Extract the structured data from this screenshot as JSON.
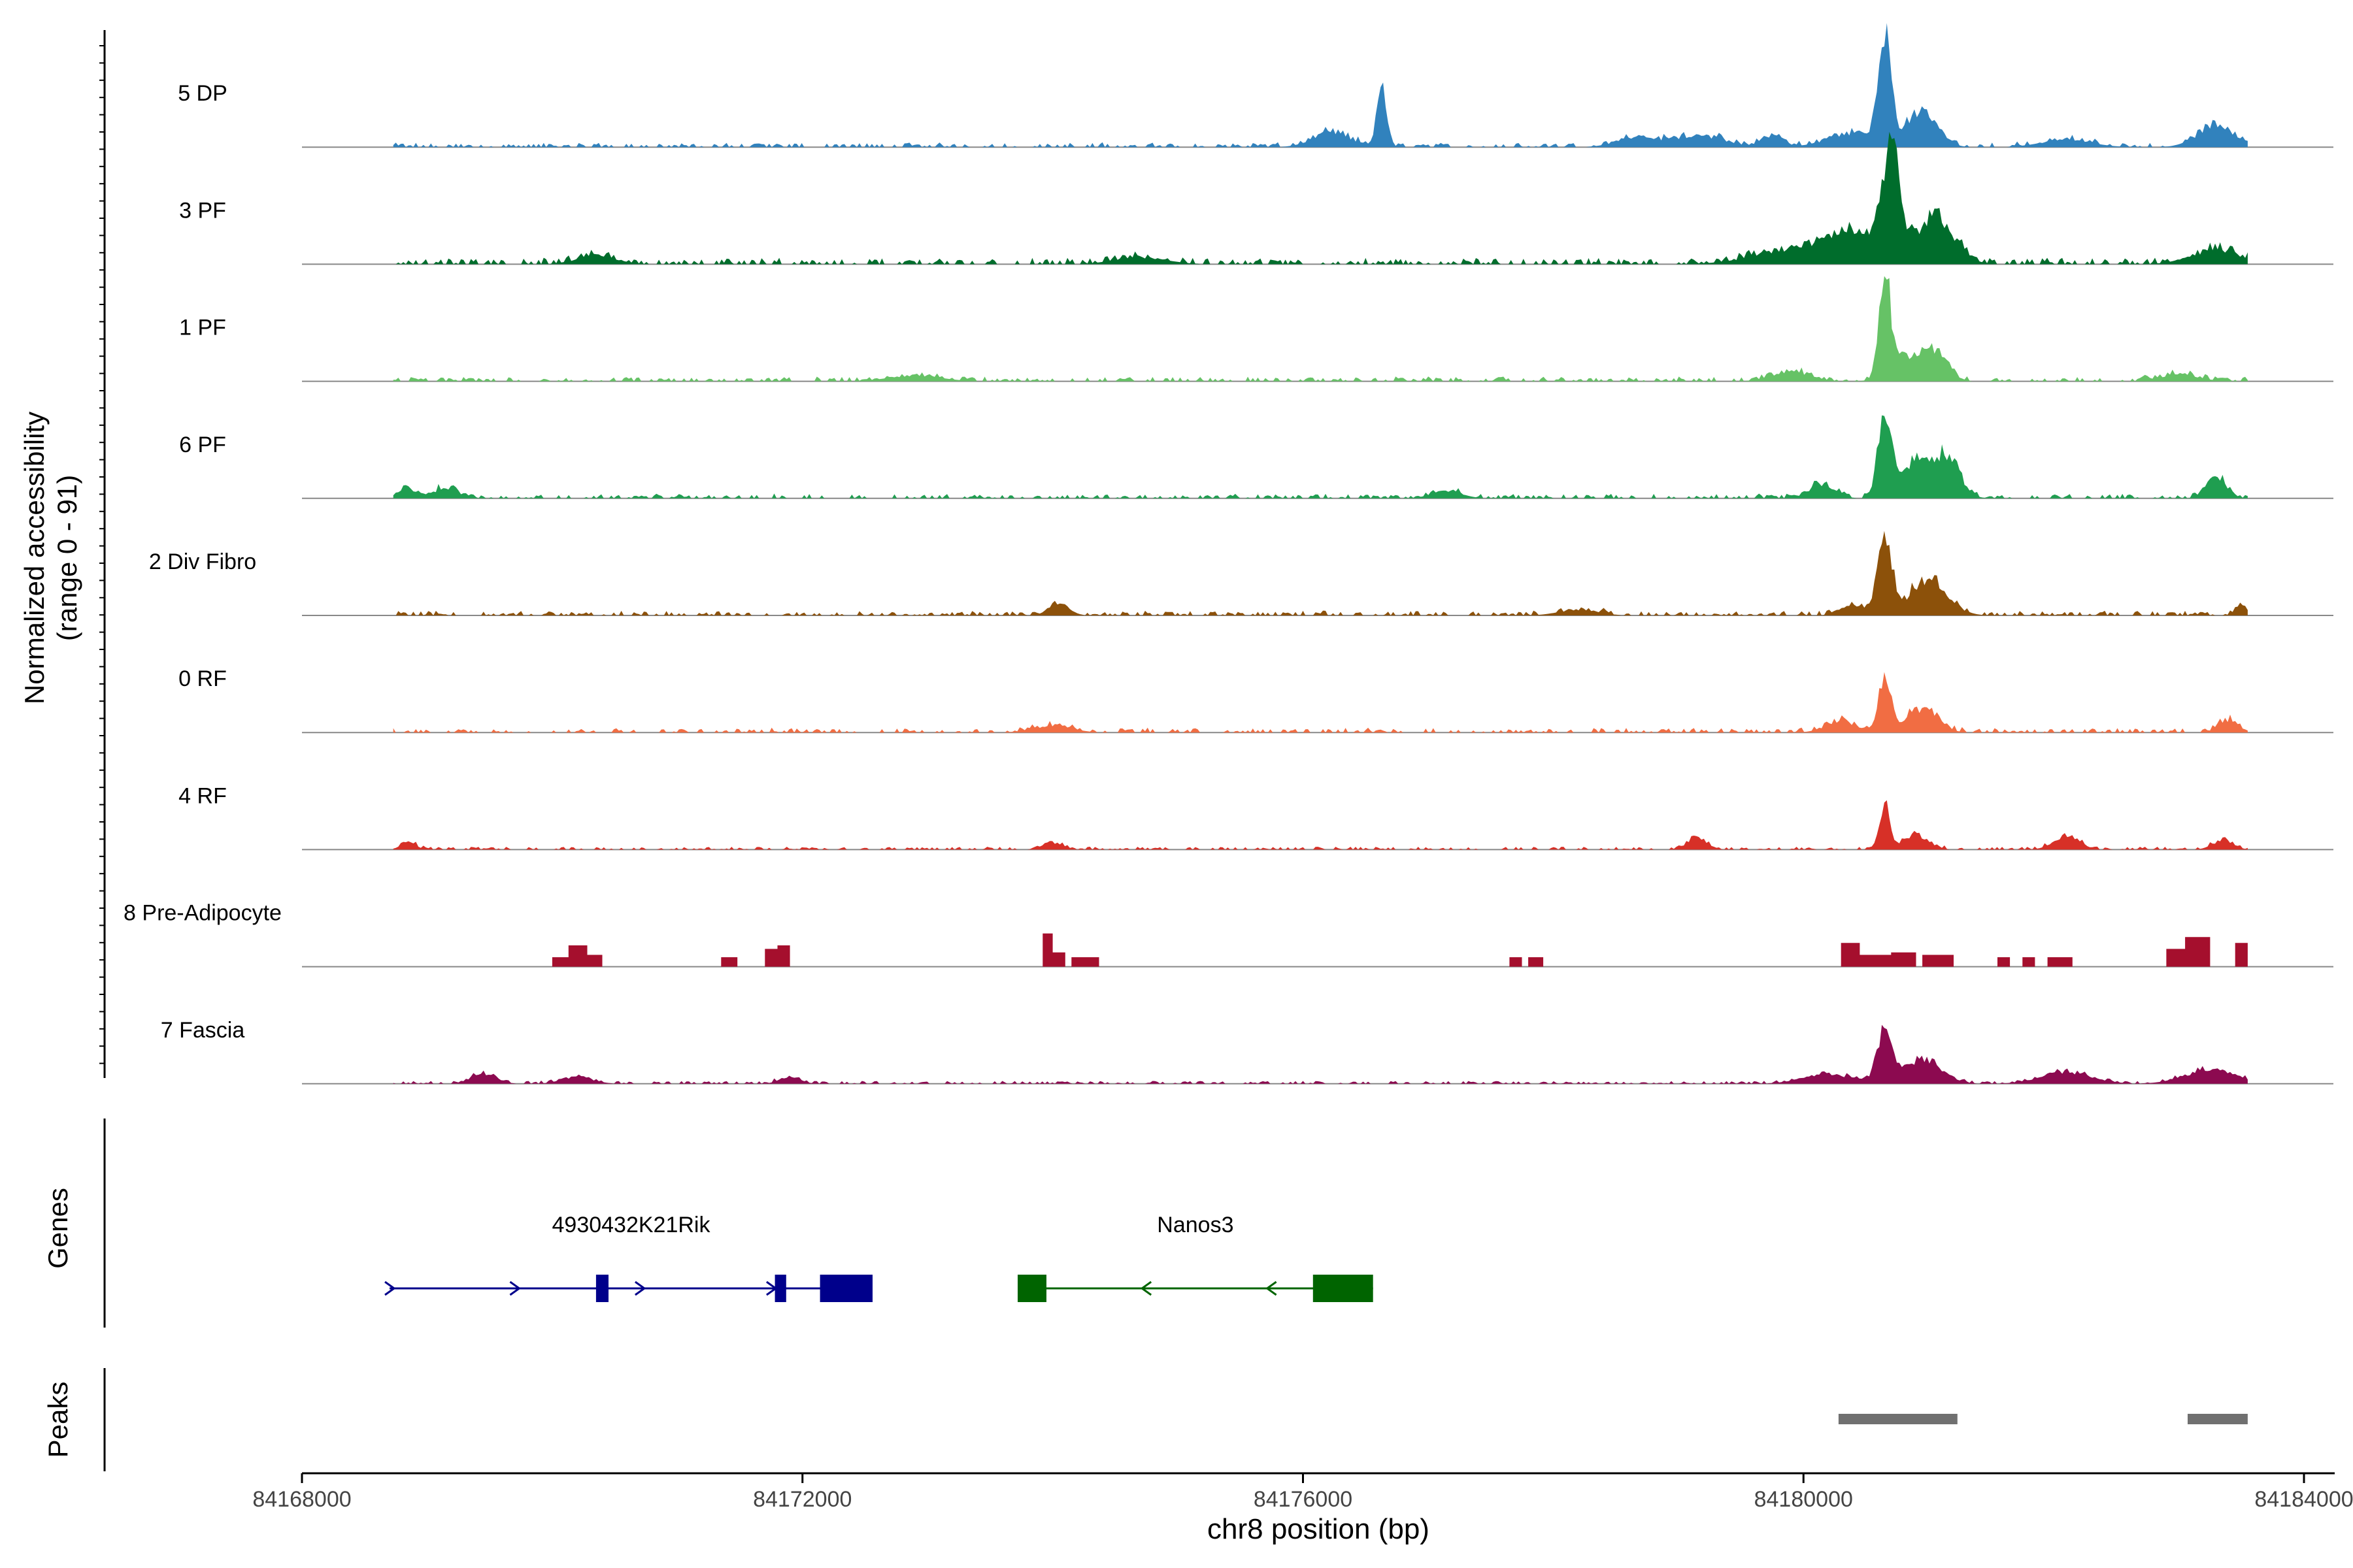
{
  "chart_data": {
    "type": "area",
    "subtype": "genome coverage track",
    "title": "",
    "ylabel_line1": "Normalized accessibility",
    "ylabel_line2": "(range 0 - 91)",
    "y_range": [
      0,
      91
    ],
    "xlabel": "chr8 position (bp)",
    "xlim": [
      84168000,
      84184000
    ],
    "x_ticks": [
      {
        "value": 84168000,
        "label": "84168000"
      },
      {
        "value": 84172000,
        "label": "84172000"
      },
      {
        "value": 84176000,
        "label": "84176000"
      },
      {
        "value": 84180000,
        "label": "84180000"
      },
      {
        "value": 84184000,
        "label": "84184000"
      }
    ],
    "data_x_range": [
      84168730,
      84183550
    ],
    "series": [
      {
        "name": "5 DP",
        "color": "#3182bd",
        "sparse": false,
        "base": 3,
        "peaks": [
          [
            84176630,
            48,
            40
          ],
          [
            84180650,
            91,
            50
          ],
          [
            84180950,
            30,
            120
          ],
          [
            84180400,
            12,
            200
          ],
          [
            84183300,
            18,
            150
          ],
          [
            84179150,
            10,
            200
          ],
          [
            84178650,
            8,
            150
          ],
          [
            84179750,
            10,
            80
          ],
          [
            84182100,
            6,
            200
          ],
          [
            84176230,
            12,
            150
          ]
        ]
      },
      {
        "name": "3 PF",
        "color": "#006d2c",
        "sparse": false,
        "base": 4,
        "peaks": [
          [
            84180700,
            85,
            70
          ],
          [
            84181050,
            40,
            150
          ],
          [
            84180400,
            25,
            200
          ],
          [
            84179900,
            12,
            300
          ],
          [
            84183300,
            12,
            200
          ],
          [
            84170350,
            8,
            150
          ],
          [
            84174700,
            6,
            200
          ]
        ]
      },
      {
        "name": "1 PF",
        "color": "#66c266",
        "sparse": false,
        "base": 3,
        "peaks": [
          [
            84180650,
            82,
            45
          ],
          [
            84181050,
            25,
            100
          ],
          [
            84180800,
            20,
            120
          ],
          [
            84179900,
            8,
            150
          ],
          [
            84183000,
            6,
            150
          ],
          [
            84172900,
            5,
            200
          ]
        ]
      },
      {
        "name": "6 PF",
        "color": "#1f9e50",
        "sparse": false,
        "base": 3,
        "peaks": [
          [
            84180650,
            70,
            55
          ],
          [
            84181150,
            35,
            100
          ],
          [
            84180900,
            30,
            120
          ],
          [
            84180150,
            12,
            100
          ],
          [
            84183300,
            18,
            80
          ],
          [
            84168850,
            8,
            80
          ],
          [
            84169150,
            9,
            90
          ],
          [
            84177150,
            6,
            120
          ]
        ]
      },
      {
        "name": "2 Div Fibro",
        "color": "#8c510a",
        "sparse": false,
        "base": 3,
        "peaks": [
          [
            84180650,
            68,
            55
          ],
          [
            84181000,
            30,
            150
          ],
          [
            84180400,
            8,
            100
          ],
          [
            84174050,
            10,
            80
          ],
          [
            84178200,
            5,
            150
          ],
          [
            84183500,
            8,
            50
          ]
        ]
      },
      {
        "name": "0 RF",
        "color": "#f16d43",
        "sparse": false,
        "base": 3,
        "peaks": [
          [
            84180650,
            45,
            50
          ],
          [
            84180950,
            20,
            120
          ],
          [
            84180300,
            10,
            120
          ],
          [
            84174000,
            6,
            150
          ],
          [
            84183400,
            10,
            80
          ]
        ]
      },
      {
        "name": "4 RF",
        "color": "#d73027",
        "sparse": false,
        "base": 2,
        "peaks": [
          [
            84180650,
            38,
            40
          ],
          [
            84180900,
            12,
            100
          ],
          [
            84182100,
            12,
            100
          ],
          [
            84179150,
            10,
            80
          ],
          [
            84183350,
            8,
            80
          ],
          [
            84168850,
            6,
            60
          ],
          [
            84174000,
            6,
            80
          ]
        ]
      },
      {
        "name": "8 Pre-Adipocyte",
        "color": "#a50f2d",
        "sparse": true,
        "base": 0,
        "blocks": [
          [
            84170000,
            84170130,
            8
          ],
          [
            84170130,
            84170280,
            18
          ],
          [
            84170280,
            84170400,
            10
          ],
          [
            84171350,
            84171480,
            8
          ],
          [
            84171700,
            84171800,
            15
          ],
          [
            84171800,
            84171900,
            18
          ],
          [
            84173920,
            84174000,
            28
          ],
          [
            84174000,
            84174100,
            12
          ],
          [
            84174150,
            84174370,
            8
          ],
          [
            84177650,
            84177750,
            8
          ],
          [
            84177800,
            84177920,
            8
          ],
          [
            84180300,
            84180450,
            20
          ],
          [
            84180450,
            84180700,
            10
          ],
          [
            84180700,
            84180900,
            12
          ],
          [
            84180950,
            84181200,
            10
          ],
          [
            84181550,
            84181650,
            8
          ],
          [
            84181750,
            84181850,
            8
          ],
          [
            84181950,
            84182150,
            8
          ],
          [
            84182900,
            84183050,
            15
          ],
          [
            84183050,
            84183250,
            25
          ],
          [
            84183450,
            84183550,
            20
          ]
        ]
      },
      {
        "name": "7 Fascia",
        "color": "#8c0a50",
        "sparse": false,
        "base": 2,
        "peaks": [
          [
            84180650,
            42,
            60
          ],
          [
            84180950,
            20,
            150
          ],
          [
            84180200,
            8,
            200
          ],
          [
            84182100,
            10,
            200
          ],
          [
            84183250,
            12,
            200
          ],
          [
            84169450,
            8,
            100
          ],
          [
            84171900,
            6,
            80
          ],
          [
            84170200,
            6,
            120
          ]
        ]
      }
    ],
    "genes": {
      "label": "Genes",
      "items": [
        {
          "name": "4930432K21Rik",
          "strand": "+",
          "color": "#00008b",
          "start": 84168700,
          "end": 84172560,
          "exons": [
            [
              84170350,
              84170450
            ],
            [
              84171780,
              84171870
            ],
            [
              84172140,
              84172560
            ]
          ],
          "arrows": [
            84168700,
            84169700,
            84170700,
            84171750
          ]
        },
        {
          "name": "Nanos3",
          "strand": "-",
          "color": "#006400",
          "start": 84173720,
          "end": 84176560,
          "exons": [
            [
              84173720,
              84173950
            ],
            [
              84176080,
              84176560
            ]
          ],
          "arrows": [
            84174750,
            84175750
          ]
        }
      ]
    },
    "peaks_track": {
      "label": "Peaks",
      "color": "#707070",
      "ranges": [
        [
          84180280,
          84181230
        ],
        [
          84183070,
          84183550
        ]
      ]
    }
  }
}
